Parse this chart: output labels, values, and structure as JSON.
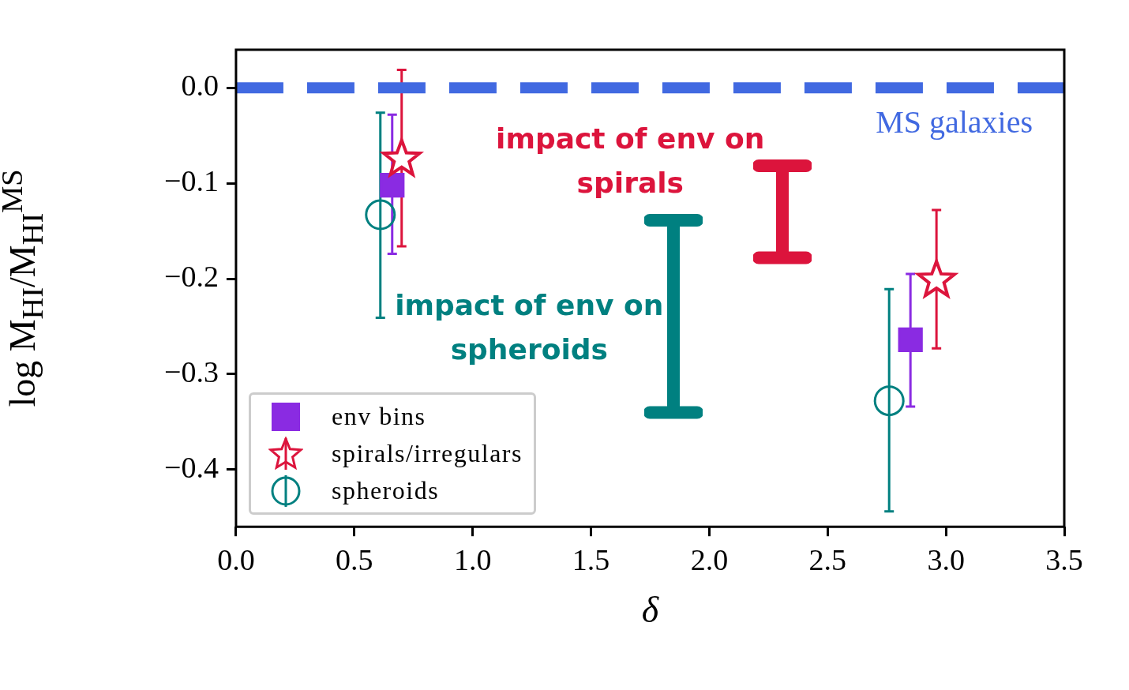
{
  "chart_data": {
    "type": "scatter",
    "xlabel": "δ",
    "ylabel": "log M$_{HI}$/M$_{HI}$$^{MS}$",
    "xlim": [
      0,
      3.5
    ],
    "ylim": [
      -0.46,
      0.04
    ],
    "xticks": [
      {
        "value": 0,
        "label": "0.0"
      },
      {
        "value": 0.5,
        "label": "0.5"
      },
      {
        "value": 1,
        "label": "1.0"
      },
      {
        "value": 1.5,
        "label": "1.5"
      },
      {
        "value": 2,
        "label": "2.0"
      },
      {
        "value": 2.5,
        "label": "2.5"
      },
      {
        "value": 3,
        "label": "3.0"
      },
      {
        "value": 3.5,
        "label": "3.5"
      }
    ],
    "yticks": [
      {
        "value": 0,
        "label": "0.0"
      },
      {
        "value": -0.1,
        "label": "−0.1"
      },
      {
        "value": -0.2,
        "label": "−0.2"
      },
      {
        "value": -0.3,
        "label": "−0.3"
      },
      {
        "value": -0.4,
        "label": "−0.4"
      }
    ],
    "grid": false,
    "legend": "bottom left",
    "series": [
      {
        "name": "env bins",
        "color": "#8a2be2",
        "marker": "square",
        "x": [
          0.66,
          2.85
        ],
        "values": [
          -0.102,
          -0.264
        ],
        "errors": [
          [
            -0.174,
            -0.028
          ],
          [
            -0.334,
            -0.195
          ]
        ]
      },
      {
        "name": "spirals/irregulars",
        "color": "#dc143c",
        "marker": "star",
        "x": [
          0.7,
          2.96
        ],
        "values": [
          -0.073,
          -0.2
        ],
        "errors": [
          [
            -0.166,
            0.019
          ],
          [
            -0.273,
            -0.128
          ]
        ]
      },
      {
        "name": "spheroids",
        "color": "#008080",
        "marker": "circle",
        "x": [
          0.61,
          2.76
        ],
        "values": [
          -0.133,
          -0.328
        ],
        "errors": [
          [
            -0.241,
            -0.026
          ],
          [
            -0.444,
            -0.211
          ]
        ]
      }
    ],
    "ref_lines": [
      {
        "axis": "y",
        "value": 0,
        "label": "MS galaxies",
        "color": "#4169e1",
        "line_style": "dashed"
      }
    ],
    "annotations": [
      "impact of env on spirals",
      "impact of env on spheroids"
    ]
  }
}
